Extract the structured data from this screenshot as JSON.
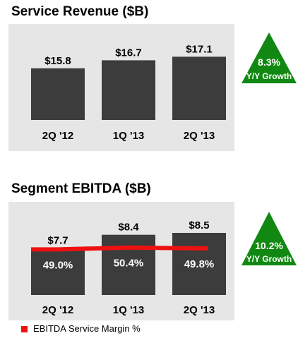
{
  "chart_data": [
    {
      "type": "bar",
      "title": "Service Revenue ($B)",
      "categories": [
        "2Q '12",
        "1Q '13",
        "2Q '13"
      ],
      "values": [
        15.8,
        16.7,
        17.1
      ],
      "value_labels": [
        "$15.8",
        "$16.7",
        "$17.1"
      ],
      "ylim": [
        10,
        18
      ],
      "bar_color": "#3c3c3c",
      "background_color": "#e6e6e6",
      "callout": {
        "value": "8.3%",
        "label": "Y/Y Growth",
        "color": "#118811"
      }
    },
    {
      "type": "bar",
      "title": "Segment EBITDA ($B)",
      "categories": [
        "2Q '12",
        "1Q '13",
        "2Q '13"
      ],
      "values": [
        7.7,
        8.4,
        8.5
      ],
      "value_labels": [
        "$7.7",
        "$8.4",
        "$8.5"
      ],
      "ylim": [
        5.2,
        8.8
      ],
      "bar_color": "#3c3c3c",
      "background_color": "#e6e6e6",
      "line_series": {
        "name": "EBITDA Service Margin %",
        "values": [
          49.0,
          50.4,
          49.8
        ],
        "labels": [
          "49.0%",
          "50.4%",
          "49.8%"
        ],
        "color": "#ee1111",
        "ylim": [
          0,
          100
        ]
      },
      "callout": {
        "value": "10.2%",
        "label": "Y/Y Growth",
        "color": "#118811"
      },
      "legend": "bottom-left"
    }
  ]
}
